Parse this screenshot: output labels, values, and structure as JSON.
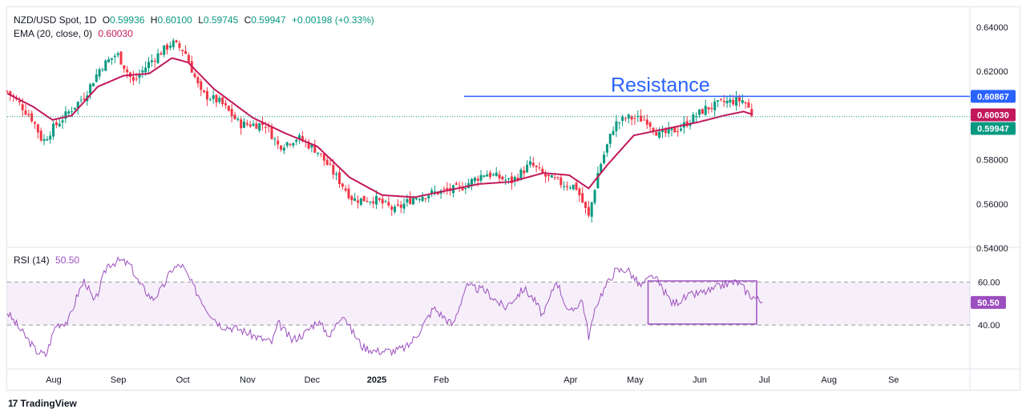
{
  "legend": {
    "symbol": "NZD/USD Spot, 1D",
    "o_label": "O",
    "o_value": "0.59936",
    "h_label": "H",
    "h_value": "0.60100",
    "l_label": "L",
    "l_value": "0.59745",
    "c_label": "C",
    "c_value": "0.59947",
    "change": "+0.00198 (+0.33%)",
    "ema_label": "EMA (20, close, 0)",
    "ema_value": "0.60030",
    "rsi_label": "RSI (14)",
    "rsi_value": "50.50"
  },
  "colors": {
    "up": "#089981",
    "down": "#f23645",
    "ema": "#c2185b",
    "rsi": "#9c4fbf",
    "resistance": "#2962ff",
    "price_tag": "#089981"
  },
  "footer": {
    "brand": "TradingView",
    "logo_icon": "tradingview-logo-icon"
  },
  "chart_data": {
    "type": "candlestick",
    "title": "NZD/USD Spot, 1D",
    "price_axis": {
      "range": [
        0.54,
        0.645
      ],
      "ticks": [
        0.64,
        0.62,
        0.6,
        0.58,
        0.56,
        0.54
      ],
      "tick_labels": [
        "0.64000",
        "0.62000",
        "0.60000",
        "0.58000",
        "0.56000",
        "0.54000"
      ]
    },
    "time_axis": {
      "labels": [
        "Aug",
        "Sep",
        "Oct",
        "Nov",
        "Dec",
        "2025",
        "Feb",
        "Apr",
        "May",
        "Jun",
        "Jul",
        "Aug",
        "Se"
      ],
      "label_months": [
        1,
        2,
        3,
        4,
        5,
        6,
        7,
        9,
        10,
        11,
        12,
        13,
        14
      ],
      "start_offset_months": 0.28,
      "range_months": [
        0,
        14.1
      ]
    },
    "resistance": {
      "label": "Resistance",
      "value": 0.60867,
      "from_month": 7.35
    },
    "price_tags": [
      {
        "text": "0.60867",
        "value": 0.60867,
        "color": "#2962ff"
      },
      {
        "text": "0.60030",
        "value": 0.6003,
        "color": "#c2185b"
      },
      {
        "text": "0.59947",
        "value": 0.59947,
        "color": "#089981"
      }
    ],
    "last_close": 0.59947,
    "close_anchors": [
      [
        0.0,
        0.611
      ],
      [
        0.2,
        0.605
      ],
      [
        0.4,
        0.598
      ],
      [
        0.55,
        0.588
      ],
      [
        0.7,
        0.594
      ],
      [
        0.9,
        0.6
      ],
      [
        1.2,
        0.609
      ],
      [
        1.45,
        0.622
      ],
      [
        1.7,
        0.628
      ],
      [
        1.95,
        0.615
      ],
      [
        2.2,
        0.624
      ],
      [
        2.55,
        0.633
      ],
      [
        2.75,
        0.629
      ],
      [
        3.0,
        0.61
      ],
      [
        3.3,
        0.606
      ],
      [
        3.6,
        0.596
      ],
      [
        4.0,
        0.596
      ],
      [
        4.2,
        0.586
      ],
      [
        4.5,
        0.59
      ],
      [
        4.8,
        0.584
      ],
      [
        5.1,
        0.572
      ],
      [
        5.35,
        0.562
      ],
      [
        5.7,
        0.562
      ],
      [
        6.0,
        0.557
      ],
      [
        6.3,
        0.563
      ],
      [
        6.6,
        0.565
      ],
      [
        7.0,
        0.567
      ],
      [
        7.4,
        0.574
      ],
      [
        7.8,
        0.57
      ],
      [
        8.1,
        0.578
      ],
      [
        8.35,
        0.572
      ],
      [
        8.6,
        0.569
      ],
      [
        8.8,
        0.568
      ],
      [
        9.0,
        0.554
      ],
      [
        9.15,
        0.575
      ],
      [
        9.4,
        0.596
      ],
      [
        9.6,
        0.599
      ],
      [
        9.9,
        0.598
      ],
      [
        10.1,
        0.591
      ],
      [
        10.4,
        0.594
      ],
      [
        10.8,
        0.603
      ],
      [
        11.1,
        0.606
      ],
      [
        11.4,
        0.607
      ],
      [
        11.55,
        0.5995
      ]
    ],
    "ema_anchors": [
      [
        0.0,
        0.61
      ],
      [
        0.4,
        0.604
      ],
      [
        0.7,
        0.598
      ],
      [
        1.0,
        0.6
      ],
      [
        1.4,
        0.613
      ],
      [
        1.8,
        0.618
      ],
      [
        2.2,
        0.619
      ],
      [
        2.55,
        0.626
      ],
      [
        2.8,
        0.624
      ],
      [
        3.2,
        0.612
      ],
      [
        3.8,
        0.599
      ],
      [
        4.3,
        0.592
      ],
      [
        4.8,
        0.586
      ],
      [
        5.3,
        0.572
      ],
      [
        5.8,
        0.564
      ],
      [
        6.3,
        0.563
      ],
      [
        6.8,
        0.566
      ],
      [
        7.3,
        0.569
      ],
      [
        7.8,
        0.57
      ],
      [
        8.3,
        0.574
      ],
      [
        8.7,
        0.573
      ],
      [
        9.0,
        0.567
      ],
      [
        9.3,
        0.578
      ],
      [
        9.7,
        0.591
      ],
      [
        10.2,
        0.594
      ],
      [
        10.7,
        0.597
      ],
      [
        11.1,
        0.6
      ],
      [
        11.4,
        0.6018
      ],
      [
        11.55,
        0.6003
      ]
    ],
    "rsi": {
      "title": "RSI (14)",
      "range": [
        20,
        75
      ],
      "upper_band": 60,
      "lower_band": 40,
      "tick_labels": [
        "60.00",
        "40.00"
      ],
      "last_value_label": "50.50",
      "last_value": 50.5,
      "box": {
        "from_month": 10.2,
        "to_month": 11.88,
        "low": 40.5,
        "high": 60.5
      },
      "anchors": [
        [
          0.0,
          46
        ],
        [
          0.15,
          40
        ],
        [
          0.45,
          28
        ],
        [
          0.6,
          26
        ],
        [
          0.75,
          40
        ],
        [
          0.95,
          42
        ],
        [
          1.1,
          55
        ],
        [
          1.2,
          61
        ],
        [
          1.35,
          50
        ],
        [
          1.55,
          68
        ],
        [
          1.75,
          70
        ],
        [
          1.9,
          68
        ],
        [
          2.05,
          59
        ],
        [
          2.25,
          52
        ],
        [
          2.4,
          57
        ],
        [
          2.55,
          66
        ],
        [
          2.7,
          68
        ],
        [
          2.9,
          57
        ],
        [
          3.1,
          47
        ],
        [
          3.3,
          40
        ],
        [
          3.6,
          38
        ],
        [
          3.9,
          34
        ],
        [
          4.1,
          32
        ],
        [
          4.2,
          41
        ],
        [
          4.4,
          33
        ],
        [
          4.6,
          36
        ],
        [
          4.8,
          42
        ],
        [
          5.0,
          35
        ],
        [
          5.2,
          46
        ],
        [
          5.3,
          39
        ],
        [
          5.5,
          30
        ],
        [
          5.7,
          28
        ],
        [
          6.0,
          28
        ],
        [
          6.2,
          30
        ],
        [
          6.4,
          38
        ],
        [
          6.6,
          48
        ],
        [
          6.9,
          40
        ],
        [
          7.1,
          58
        ],
        [
          7.4,
          56
        ],
        [
          7.7,
          48
        ],
        [
          8.0,
          57
        ],
        [
          8.15,
          52
        ],
        [
          8.3,
          44
        ],
        [
          8.5,
          61
        ],
        [
          8.7,
          45
        ],
        [
          8.9,
          52
        ],
        [
          9.0,
          35
        ],
        [
          9.15,
          52
        ],
        [
          9.4,
          65
        ],
        [
          9.6,
          66
        ],
        [
          9.8,
          58
        ],
        [
          10.0,
          63
        ],
        [
          10.3,
          50
        ],
        [
          10.6,
          54
        ],
        [
          10.9,
          56
        ],
        [
          11.1,
          59
        ],
        [
          11.3,
          60
        ],
        [
          11.5,
          54
        ],
        [
          11.7,
          50.5
        ]
      ]
    }
  }
}
